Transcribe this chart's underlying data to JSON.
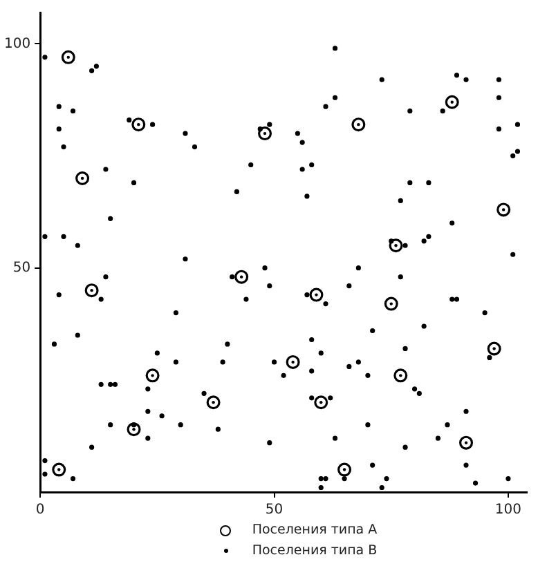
{
  "chart_data": {
    "type": "scatter",
    "xlim": [
      0,
      104
    ],
    "ylim": [
      0,
      107
    ],
    "xticks": [
      0,
      50,
      100
    ],
    "yticks": [
      50,
      100
    ],
    "grid": false,
    "legend": "bottom",
    "marker": "circle",
    "series": [
      {
        "name": "Поселения типа A",
        "color": "#000000",
        "x": [
          6,
          21,
          9,
          48,
          68,
          88,
          99,
          76,
          43,
          11,
          59,
          75,
          97,
          24,
          54,
          77,
          37,
          60,
          20,
          91,
          4,
          65
        ],
        "values": [
          97,
          82,
          70,
          80,
          82,
          87,
          63,
          55,
          48,
          45,
          44,
          42,
          32,
          26,
          29,
          26,
          20,
          20,
          14,
          11,
          5,
          5
        ]
      },
      {
        "name": "Поселения типа B",
        "color": "#000000",
        "x": [
          1,
          11,
          12,
          4,
          7,
          4,
          5,
          19,
          24,
          31,
          33,
          14,
          20,
          15,
          1,
          5,
          8,
          31,
          42,
          45,
          47,
          49,
          63,
          73,
          63,
          61,
          55,
          56,
          79,
          89,
          91,
          98,
          98,
          86,
          102,
          98,
          102,
          101,
          58,
          56,
          57,
          79,
          83,
          77,
          88,
          75,
          78,
          82,
          83,
          101,
          14,
          4,
          13,
          29,
          8,
          3,
          25,
          29,
          13,
          15,
          16,
          23,
          23,
          26,
          15,
          20,
          23,
          30,
          11,
          1,
          1,
          7,
          35,
          38,
          40,
          39,
          41,
          44,
          48,
          49,
          50,
          49,
          68,
          77,
          66,
          57,
          61,
          88,
          89,
          95,
          71,
          82,
          58,
          78,
          60,
          96,
          52,
          58,
          66,
          68,
          70,
          80,
          81,
          58,
          62,
          70,
          87,
          91,
          63,
          85,
          78,
          71,
          91,
          60,
          61,
          60,
          65,
          74,
          73,
          93,
          100
        ],
        "values": [
          97,
          94,
          95,
          86,
          85,
          81,
          77,
          83,
          82,
          80,
          77,
          72,
          69,
          61,
          57,
          57,
          55,
          52,
          67,
          73,
          81,
          82,
          99,
          92,
          88,
          86,
          80,
          78,
          85,
          93,
          92,
          92,
          88,
          85,
          82,
          81,
          76,
          75,
          73,
          72,
          66,
          69,
          69,
          65,
          60,
          56,
          55,
          56,
          57,
          53,
          48,
          44,
          43,
          40,
          35,
          33,
          31,
          29,
          24,
          24,
          24,
          23,
          18,
          17,
          15,
          15,
          12,
          15,
          10,
          7,
          4,
          3,
          22,
          14,
          33,
          29,
          48,
          43,
          50,
          46,
          29,
          11,
          50,
          48,
          46,
          44,
          42,
          43,
          43,
          40,
          36,
          37,
          34,
          32,
          31,
          30,
          26,
          27,
          28,
          29,
          26,
          23,
          22,
          21,
          21,
          15,
          15,
          18,
          12,
          12,
          10,
          6,
          6,
          3,
          3,
          1,
          3,
          3,
          1,
          2,
          3
        ]
      }
    ]
  }
}
